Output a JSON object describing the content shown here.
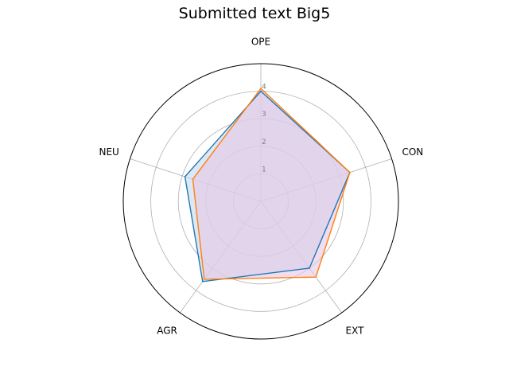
{
  "chart_data": {
    "type": "radar",
    "title": "Submitted text Big5",
    "categories": [
      "OPE",
      "CON",
      "EXT",
      "AGR",
      "NEU"
    ],
    "rlim": [
      0,
      5
    ],
    "rticks": [
      1,
      2,
      3,
      4
    ],
    "grid": true,
    "series": [
      {
        "color": "#1f77b4",
        "fill": "#c6d9f0",
        "values": [
          4.0,
          3.4,
          3.0,
          3.6,
          2.9
        ]
      },
      {
        "color": "#ff7f0e",
        "fill": "#e6c8e4",
        "values": [
          4.1,
          3.4,
          3.4,
          3.5,
          2.6
        ]
      }
    ]
  }
}
